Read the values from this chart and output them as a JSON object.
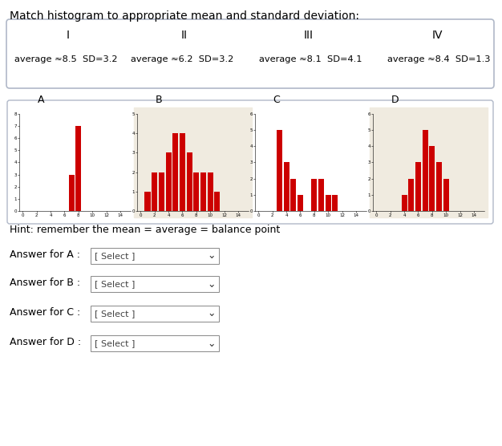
{
  "title": "Match histogram to appropriate mean and standard deviation:",
  "options_box": {
    "labels": [
      "I",
      "II",
      "III",
      "IV"
    ],
    "descriptions": [
      "average ≈8.5  SD=3.2",
      "average ≈6.2  SD=3.2",
      "average ≈8.1  SD=4.1",
      "average ≈8.4  SD=1.3"
    ]
  },
  "histogram_labels": [
    "A",
    "B",
    "C",
    "D"
  ],
  "bar_color": "#cc0000",
  "hist_bg_odd": "#f0ebe0",
  "hint_text": "Hint: remember the mean = average = balance point",
  "answer_labels": [
    "Answer for A :",
    "Answer for B :",
    "Answer for C :",
    "Answer for D :"
  ],
  "select_text": "[ Select ]",
  "histograms": {
    "A": {
      "heights": [
        0,
        0,
        0,
        0,
        0,
        0,
        0,
        3,
        7,
        0,
        0,
        0,
        0,
        0,
        0,
        0
      ]
    },
    "B": {
      "heights": [
        0,
        1,
        2,
        2,
        3,
        4,
        4,
        3,
        2,
        2,
        2,
        1,
        0,
        0,
        0,
        0
      ]
    },
    "C": {
      "heights": [
        0,
        0,
        0,
        5,
        3,
        2,
        1,
        0,
        2,
        2,
        1,
        1,
        0,
        0,
        0,
        0
      ]
    },
    "D": {
      "heights": [
        0,
        0,
        0,
        0,
        1,
        2,
        3,
        5,
        4,
        3,
        2,
        0,
        0,
        0,
        0,
        0
      ]
    }
  }
}
